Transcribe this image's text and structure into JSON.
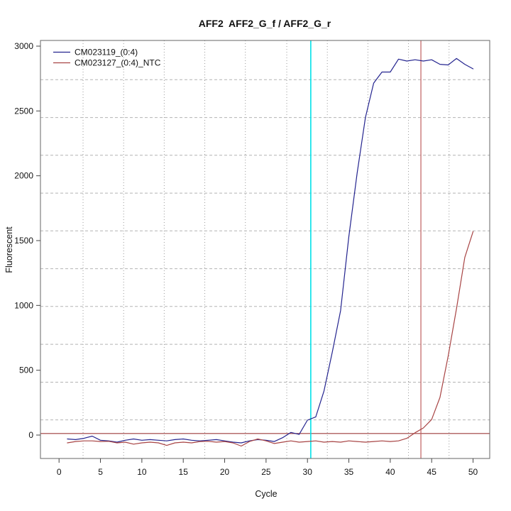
{
  "title": "AFF2  AFF2_G_f / AFF2_G_r",
  "axes": {
    "x_label": "Cycle",
    "y_label": "Fluorescent"
  },
  "legend": {
    "position": "topleft",
    "items": [
      {
        "label": "CM023119_(0:4)",
        "color": "#24248F"
      },
      {
        "label": "CM023127_(0:4)_NTC",
        "color": "#A84444"
      }
    ]
  },
  "colors": {
    "series_positive": "#24248F",
    "series_ntc": "#A84444",
    "threshold_line": "#9E3B3B",
    "red_vline": "#C06060",
    "cyan_vline": "#00E1E8",
    "grid": "#AAAAAA",
    "box": "#666666"
  },
  "chart_data": {
    "type": "line",
    "title": "AFF2  AFF2_G_f / AFF2_G_r",
    "xlabel": "Cycle",
    "ylabel": "Fluorescent",
    "xlim": [
      0,
      50
    ],
    "ylim": [
      0,
      3000
    ],
    "x_ticks": [
      0,
      5,
      10,
      15,
      20,
      25,
      30,
      35,
      40,
      45,
      50
    ],
    "y_ticks": [
      0,
      500,
      1000,
      1500,
      2000,
      2500,
      3000
    ],
    "grid": {
      "vertical_dotted_at_cycles": [
        2.9,
        7.8,
        12.7,
        17.6,
        22.5,
        27.5,
        32.4,
        37.3,
        42.2,
        47.1
      ],
      "horizontal_dashed_at_values": [
        117,
        408,
        700,
        992,
        1283,
        1575,
        1866,
        2158,
        2449,
        2741
      ]
    },
    "legend_position": "topleft",
    "cycles": [
      1,
      2,
      3,
      4,
      5,
      6,
      7,
      8,
      9,
      10,
      11,
      12,
      13,
      14,
      15,
      16,
      17,
      18,
      19,
      20,
      21,
      22,
      23,
      24,
      25,
      26,
      27,
      28,
      29,
      30,
      31,
      32,
      33,
      34,
      35,
      36,
      37,
      38,
      39,
      40,
      41,
      42,
      43,
      44,
      45,
      46,
      47,
      48,
      49,
      50
    ],
    "series": [
      {
        "name": "CM023119_(0:4)",
        "color": "#24248F",
        "values": [
          -30,
          -35,
          -25,
          -8,
          -40,
          -45,
          -55,
          -40,
          -30,
          -40,
          -35,
          -40,
          -45,
          -35,
          -30,
          -40,
          -45,
          -40,
          -35,
          -45,
          -55,
          -60,
          -45,
          -35,
          -40,
          -50,
          -20,
          20,
          5,
          115,
          140,
          340,
          640,
          960,
          1530,
          2020,
          2450,
          2715,
          2800,
          2800,
          2900,
          2885,
          2895,
          2885,
          2895,
          2860,
          2855,
          2905,
          2860,
          2825
        ]
      },
      {
        "name": "CM023127_(0:4)_NTC",
        "color": "#A84444",
        "values": [
          -60,
          -50,
          -45,
          -45,
          -50,
          -48,
          -60,
          -55,
          -70,
          -60,
          -55,
          -60,
          -80,
          -60,
          -55,
          -60,
          -50,
          -48,
          -55,
          -50,
          -60,
          -85,
          -50,
          -30,
          -45,
          -65,
          -55,
          -45,
          -55,
          -50,
          -45,
          -55,
          -50,
          -55,
          -45,
          -50,
          -55,
          -50,
          -45,
          -50,
          -45,
          -25,
          18,
          55,
          120,
          290,
          610,
          975,
          1370,
          1570
        ]
      }
    ],
    "markers": {
      "threshold_hline_value": 12,
      "cyan_vline_cycle": 30.4,
      "red_vline_cycle": 43.7
    }
  }
}
